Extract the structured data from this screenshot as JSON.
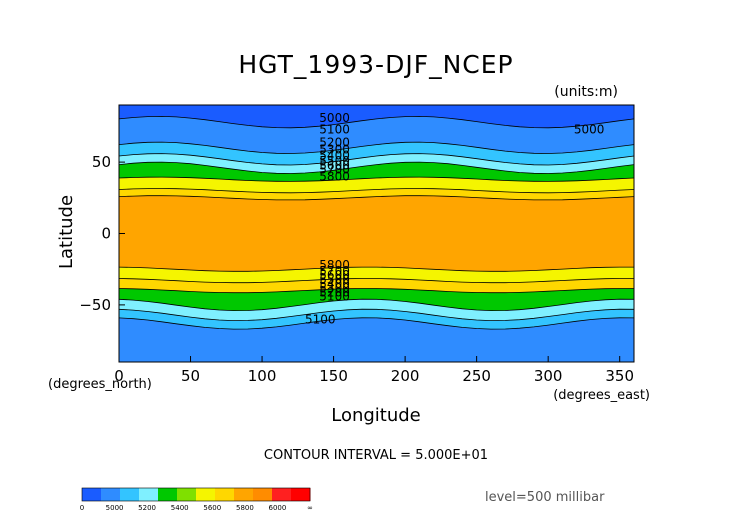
{
  "chart_data": {
    "type": "contour",
    "title": "HGT_1993-DJF_NCEP",
    "units": "(units:m)",
    "xlabel": "Longitude",
    "ylabel": "Latitude",
    "x_units": "(degrees_east)",
    "y_units": "(degrees_north)",
    "xlim": [
      0,
      360
    ],
    "ylim": [
      -90,
      90
    ],
    "x_ticks": [
      0,
      50,
      100,
      150,
      200,
      250,
      300,
      350
    ],
    "y_ticks": [
      -50,
      0,
      50
    ],
    "contour_interval": "CONTOUR INTERVAL = 5.000E+01",
    "level": "level=500 millibar",
    "contour_labels": [
      "5000",
      "5100",
      "5200",
      "5300",
      "5400",
      "5500",
      "5600",
      "5700",
      "5800",
      "5000",
      "5100",
      "5800",
      "5700",
      "5600",
      "5500",
      "5400",
      "5300",
      "5200",
      "5100"
    ],
    "colorbar": {
      "tick_labels": [
        "0",
        "5000",
        "5200",
        "5400",
        "5600",
        "5800",
        "6000",
        "∞"
      ],
      "colors": [
        "#1a5cff",
        "#2f8cff",
        "#33c4ff",
        "#7ff0ff",
        "#00c800",
        "#7fe000",
        "#f5f500",
        "#ffd700",
        "#ffa500",
        "#ff8c00",
        "#ff2020",
        "#ff0000"
      ]
    },
    "bands": [
      {
        "from": 90,
        "to": 78,
        "color": "#1a5cff"
      },
      {
        "from": 78,
        "to": 60,
        "color": "#2f8cff"
      },
      {
        "from": 60,
        "to": 52,
        "color": "#33c4ff"
      },
      {
        "from": 52,
        "to": 46,
        "color": "#7ff0ff"
      },
      {
        "from": 46,
        "to": 38,
        "color": "#00c800"
      },
      {
        "from": 38,
        "to": 30,
        "color": "#f5f500"
      },
      {
        "from": 30,
        "to": 25,
        "color": "#ffd700"
      },
      {
        "from": 25,
        "to": -25,
        "color": "#ffa500"
      },
      {
        "from": -25,
        "to": -33,
        "color": "#f5f500"
      },
      {
        "from": -33,
        "to": -40,
        "color": "#ffd700"
      },
      {
        "from": -40,
        "to": -50,
        "color": "#00c800"
      },
      {
        "from": -50,
        "to": -57,
        "color": "#7ff0ff"
      },
      {
        "from": -57,
        "to": -63,
        "color": "#33c4ff"
      },
      {
        "from": -63,
        "to": -90,
        "color": "#2f8cff"
      }
    ]
  }
}
